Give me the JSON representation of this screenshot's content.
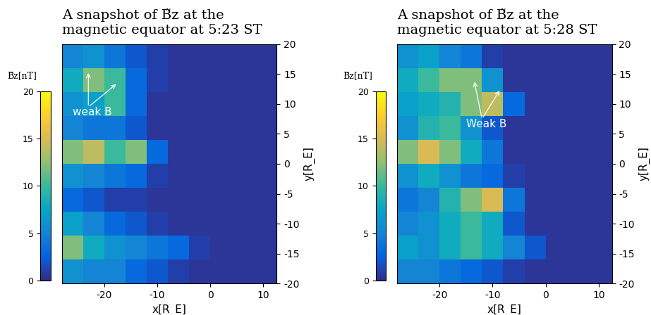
{
  "chart_data": [
    {
      "type": "heatmap",
      "title": "A snapshot of B̃z at the\nmagnetic equator at 5:23 ST",
      "x_label": "x[R_E]",
      "y_label": "y[R_E]",
      "xlim": [
        -28,
        12.5
      ],
      "xticks": [
        -20,
        -10,
        0,
        10
      ],
      "ylim": [
        -20,
        20
      ],
      "yticks": [
        -20,
        -15,
        -10,
        -5,
        0,
        5,
        10,
        15,
        20
      ],
      "cell_x": [
        -26,
        -22,
        -18,
        -14,
        -10,
        -6,
        -2,
        2,
        6,
        10
      ],
      "cell_y": [
        18,
        14,
        10,
        6,
        2,
        -2,
        -6,
        -10,
        -14,
        -18
      ],
      "cells": [
        [
          5,
          6,
          4,
          2,
          1,
          0.5,
          0.5,
          0.5,
          0.5,
          0.5
        ],
        [
          8,
          12,
          10,
          3,
          1,
          0.5,
          0.5,
          0.5,
          0.5,
          0.5
        ],
        [
          6,
          7,
          10,
          3,
          0.5,
          0.5,
          0.5,
          0.5,
          0.5,
          0.5
        ],
        [
          5,
          4,
          4,
          2,
          0.5,
          0.5,
          0.5,
          0.5,
          0.5,
          0.5
        ],
        [
          12,
          14,
          10,
          12,
          3,
          0.5,
          0.5,
          0.5,
          0.5,
          0.5
        ],
        [
          6,
          5,
          4,
          3,
          1,
          0.5,
          0.5,
          0.5,
          0.5,
          0.5
        ],
        [
          3,
          2,
          1,
          1,
          0.5,
          0.5,
          0.5,
          0.5,
          0.5,
          0.5
        ],
        [
          7,
          5,
          3,
          2,
          1,
          0.5,
          0.5,
          0.5,
          0.5,
          0.5
        ],
        [
          12,
          8,
          6,
          5,
          4,
          3,
          1,
          0.5,
          0.5,
          0.5
        ],
        [
          6,
          5,
          5,
          3,
          2,
          1,
          0.5,
          0.5,
          0.5,
          0.5
        ]
      ],
      "colorbar_label": "B̃z[nT]",
      "colorbar_range": [
        0,
        20
      ],
      "colorbar_ticks": [
        0,
        5,
        10,
        15,
        20
      ],
      "annotations": [
        "weak B"
      ]
    },
    {
      "type": "heatmap",
      "title": "A snapshot of B̃z at the\nmagnetic equator at 5:28 ST",
      "x_label": "x[R_E]",
      "y_label": "y[R_E]",
      "xlim": [
        -28,
        12.5
      ],
      "xticks": [
        -20,
        -10,
        0,
        10
      ],
      "ylim": [
        -20,
        20
      ],
      "yticks": [
        -20,
        -15,
        -10,
        -5,
        0,
        5,
        10,
        15,
        20
      ],
      "cell_x": [
        -26,
        -22,
        -18,
        -14,
        -10,
        -6,
        -2,
        2,
        6,
        10
      ],
      "cell_y": [
        18,
        14,
        10,
        6,
        2,
        -2,
        -6,
        -10,
        -14,
        -18
      ],
      "cells": [
        [
          6,
          7,
          5,
          4,
          1,
          0.5,
          0.5,
          0.5,
          0.5,
          0.5
        ],
        [
          8,
          10,
          12,
          12,
          6,
          0.5,
          0.5,
          0.5,
          0.5,
          0.5
        ],
        [
          7,
          8,
          9,
          12,
          14,
          3,
          0.5,
          0.5,
          0.5,
          0.5
        ],
        [
          6,
          9,
          10,
          6,
          2,
          0.5,
          0.5,
          0.5,
          0.5,
          0.5
        ],
        [
          12,
          15,
          12,
          8,
          4,
          0.5,
          0.5,
          0.5,
          0.5,
          0.5
        ],
        [
          6,
          8,
          6,
          4,
          3,
          1,
          0.5,
          0.5,
          0.5,
          0.5
        ],
        [
          4,
          5,
          9,
          12,
          15,
          4,
          0.5,
          0.5,
          0.5,
          0.5
        ],
        [
          5,
          6,
          8,
          10,
          8,
          2,
          0.5,
          0.5,
          0.5,
          0.5
        ],
        [
          7,
          6,
          8,
          10,
          8,
          5,
          2,
          0.5,
          0.5,
          0.5
        ],
        [
          5,
          5,
          4,
          3,
          2,
          1,
          0.5,
          0.5,
          0.5,
          0.5
        ]
      ],
      "colorbar_label": "B̃z[nT]",
      "colorbar_range": [
        0,
        20
      ],
      "colorbar_ticks": [
        0,
        5,
        10,
        15,
        20
      ],
      "annotations": [
        "Weak B"
      ]
    }
  ]
}
